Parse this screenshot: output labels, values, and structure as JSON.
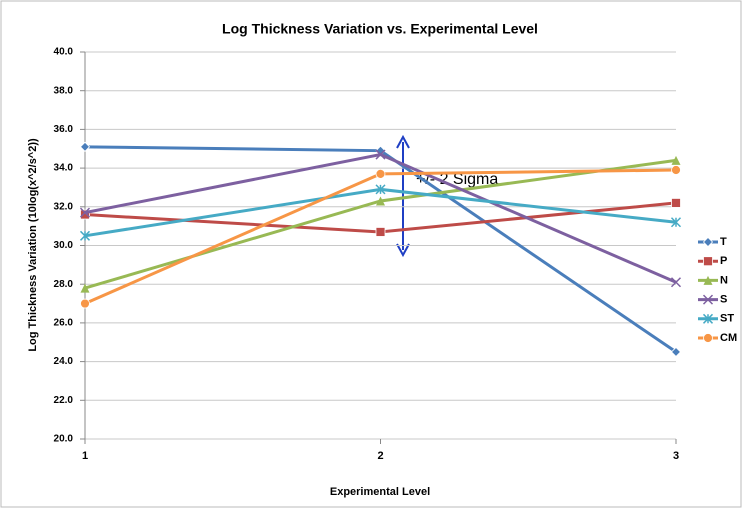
{
  "chart_data": {
    "type": "line",
    "title": "Log Thickness Variation vs. Experimental Level",
    "x_label": "Experimental Level",
    "y_label": "Log Thickness Variation (10log(x^2/s^2))",
    "annotation": "+/- 2 Sigma",
    "x": [
      1,
      2,
      3
    ],
    "xlim": [
      1,
      3
    ],
    "xticks": [
      1,
      2,
      3
    ],
    "ylim": [
      20,
      40
    ],
    "yticks": [
      {
        "value": 20,
        "label": "20.0"
      },
      {
        "value": 22,
        "label": "22.0"
      },
      {
        "value": 24,
        "label": "24.0"
      },
      {
        "value": 26,
        "label": "26.0"
      },
      {
        "value": 28,
        "label": "28.0"
      },
      {
        "value": 30,
        "label": "30.0"
      },
      {
        "value": 32,
        "label": "32.0"
      },
      {
        "value": 34,
        "label": "34.0"
      },
      {
        "value": 36,
        "label": "36.0"
      },
      {
        "value": 38,
        "label": "38.0"
      },
      {
        "value": 40,
        "label": "40.0"
      }
    ],
    "grid": true,
    "legend": "right",
    "series": [
      {
        "name": "T",
        "color": "#4a7ebb",
        "marker": "diamond",
        "values": [
          35.1,
          34.9,
          24.5
        ]
      },
      {
        "name": "P",
        "color": "#be4b48",
        "marker": "square",
        "values": [
          31.6,
          30.7,
          32.2
        ]
      },
      {
        "name": "N",
        "color": "#98b954",
        "marker": "triangle",
        "values": [
          27.8,
          32.3,
          34.4
        ]
      },
      {
        "name": "S",
        "color": "#7d60a0",
        "marker": "x",
        "values": [
          31.7,
          34.7,
          28.1
        ]
      },
      {
        "name": "ST",
        "color": "#46aac5",
        "marker": "star",
        "values": [
          30.5,
          32.9,
          31.2
        ]
      },
      {
        "name": "CM",
        "color": "#f79646",
        "marker": "circle",
        "values": [
          27.0,
          33.7,
          33.9
        ]
      }
    ]
  }
}
